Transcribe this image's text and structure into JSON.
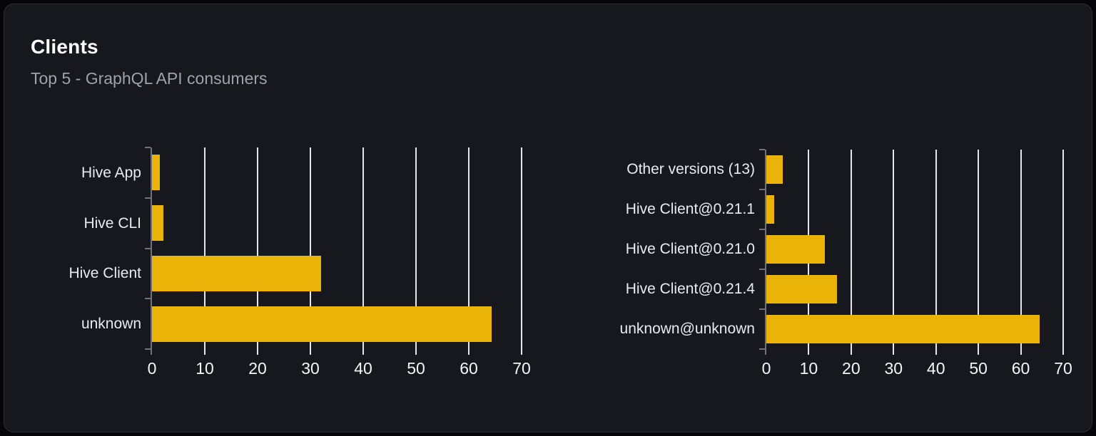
{
  "header": {
    "title": "Clients",
    "subtitle": "Top 5 - GraphQL API consumers"
  },
  "colors": {
    "bar": "#eab308",
    "card_bg": "#16181d",
    "card_border": "#2b2e34",
    "page_bg": "#060608",
    "grid": "#e5e7eb",
    "axis": "#71717a",
    "title": "#ffffff",
    "subtitle": "#9ba3ae",
    "category_label": "#e9ebef",
    "tick_label": "#f4f5f6"
  },
  "chart_data": [
    {
      "type": "bar",
      "orientation": "horizontal",
      "name": "clients-by-name",
      "categories": [
        "Hive App",
        "Hive CLI",
        "Hive Client",
        "unknown"
      ],
      "values": [
        1.5,
        2.2,
        32,
        64.3
      ],
      "xticks": [
        0,
        10,
        20,
        30,
        40,
        50,
        60,
        70
      ],
      "xlim": [
        0,
        70
      ],
      "grid": "vertical",
      "legend": "none",
      "bar_color": "#eab308"
    },
    {
      "type": "bar",
      "orientation": "horizontal",
      "name": "clients-by-version",
      "categories": [
        "Other versions (13)",
        "Hive Client@0.21.1",
        "Hive Client@0.21.0",
        "Hive Client@0.21.4",
        "unknown@unknown"
      ],
      "values": [
        3.9,
        1.8,
        13.8,
        16.6,
        64.4
      ],
      "xticks": [
        0,
        10,
        20,
        30,
        40,
        50,
        60,
        70
      ],
      "xlim": [
        0,
        70
      ],
      "grid": "vertical",
      "legend": "none",
      "bar_color": "#eab308"
    }
  ]
}
